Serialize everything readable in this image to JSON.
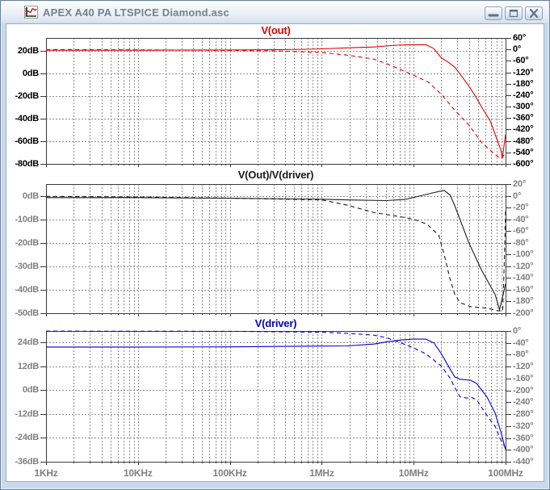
{
  "window": {
    "title": "APEX A40 PA LTSPICE Diamond.asc",
    "app_icon": "waveform-icon",
    "buttons": [
      {
        "name": "minimize",
        "icon": "minimize-icon"
      },
      {
        "name": "restore",
        "icon": "restore-icon"
      },
      {
        "name": "close",
        "icon": "close-icon"
      }
    ]
  },
  "colors": {
    "trace_red": "#e00000",
    "trace_black": "#1a1a1a",
    "trace_blue": "#0000cc",
    "grid": "#8f8f8f",
    "plot_border": "#3a3a3a",
    "axis_text_active": "#000000",
    "axis_text_inactive": "#808080",
    "frame_blue": "#c7daee"
  },
  "x_axis": {
    "scale": "log",
    "unit": "Hz",
    "min_hz": 1000,
    "max_hz": 100000000,
    "tick_labels": [
      "1KHz",
      "10KHz",
      "100KHz",
      "1MHz",
      "10MHz",
      "100MHz"
    ],
    "minor_tick_multipliers": [
      2,
      3,
      4,
      5,
      6,
      7,
      8,
      9
    ],
    "text_color": "#808080"
  },
  "chart_data": [
    {
      "type": "line",
      "title": "V(out)",
      "title_color": "#e00000",
      "axis_text_color": "#000000",
      "y_left": {
        "unit": "dB",
        "tick_labels": [
          "20dB",
          "0dB",
          "-20dB",
          "-40dB",
          "-60dB",
          "-80dB"
        ],
        "tick_values": [
          20,
          0,
          -20,
          -40,
          -60,
          -80
        ],
        "top_value": 31.2,
        "bottom_value": -80
      },
      "y_right": {
        "unit": "deg",
        "tick_labels": [
          "60°",
          "0°",
          "-60°",
          "-120°",
          "-180°",
          "-240°",
          "-300°",
          "-360°",
          "-420°",
          "-480°",
          "-540°",
          "-600°"
        ],
        "tick_values": [
          60,
          0,
          -60,
          -120,
          -180,
          -240,
          -300,
          -360,
          -420,
          -480,
          -540,
          -600
        ],
        "top_value": 60,
        "bottom_value": -600
      },
      "series": [
        {
          "name": "V(out) magnitude",
          "axis": "left",
          "line": "solid",
          "color": "#e00000",
          "points": [
            [
              1000,
              20.4
            ],
            [
              10000,
              20.4
            ],
            [
              100000,
              20.6
            ],
            [
              300000,
              20.8
            ],
            [
              700000,
              21.2
            ],
            [
              1000000,
              21.6
            ],
            [
              2000000,
              22.5
            ],
            [
              3700000,
              23.2
            ],
            [
              6400000,
              24.8
            ],
            [
              10000000,
              25.2
            ],
            [
              13500000,
              25.2
            ],
            [
              16500000,
              22.0
            ],
            [
              20000000,
              13.6
            ],
            [
              24000000,
              9.5
            ],
            [
              28000000,
              5.3
            ],
            [
              32000000,
              -0.7
            ],
            [
              40000000,
              -11.4
            ],
            [
              48500000,
              -22.0
            ],
            [
              55000000,
              -30.0
            ],
            [
              68000000,
              -42.0
            ],
            [
              77000000,
              -54.0
            ],
            [
              89000000,
              -68.0
            ],
            [
              92000000,
              -75.0
            ],
            [
              100000000,
              -54.0
            ]
          ]
        },
        {
          "name": "V(out) phase",
          "axis": "right",
          "line": "dashed",
          "color": "#e00000",
          "points": [
            [
              1000,
              -1
            ],
            [
              10000,
              -2
            ],
            [
              100000,
              -5
            ],
            [
              375000,
              -9
            ],
            [
              1000000,
              -16
            ],
            [
              1900000,
              -30
            ],
            [
              3700000,
              -51
            ],
            [
              5200000,
              -77
            ],
            [
              7400000,
              -108
            ],
            [
              10000000,
              -136
            ],
            [
              14400000,
              -171
            ],
            [
              20000000,
              -235
            ],
            [
              28000000,
              -319
            ],
            [
              40000000,
              -397
            ],
            [
              55000000,
              -489
            ],
            [
              77000000,
              -552
            ],
            [
              89000000,
              -573
            ],
            [
              100000000,
              -545
            ]
          ]
        }
      ]
    },
    {
      "type": "line",
      "title": "V(Out)/V(driver)",
      "title_color": "#1a1a1a",
      "axis_text_color": "#808080",
      "y_left": {
        "unit": "dB",
        "tick_labels": [
          "0dB",
          "-10dB",
          "-20dB",
          "-30dB",
          "-40dB",
          "-50dB"
        ],
        "tick_values": [
          0,
          -10,
          -20,
          -30,
          -40,
          -50
        ],
        "top_value": 5.3,
        "bottom_value": -50
      },
      "y_right": {
        "unit": "deg",
        "tick_labels": [
          "20°",
          "0°",
          "-20°",
          "-40°",
          "-60°",
          "-80°",
          "-100°",
          "-120°",
          "-140°",
          "-160°",
          "-180°",
          "-200°"
        ],
        "tick_values": [
          20,
          0,
          -20,
          -40,
          -60,
          -80,
          -100,
          -120,
          -140,
          -160,
          -180,
          -200
        ],
        "top_value": 20,
        "bottom_value": -200
      },
      "series": [
        {
          "name": "V(Out)/V(driver) magnitude",
          "axis": "left",
          "line": "solid",
          "color": "#1a1a1a",
          "points": [
            [
              1000,
              -0.5
            ],
            [
              10000,
              -0.5
            ],
            [
              100000,
              -0.8
            ],
            [
              1000000,
              -1.2
            ],
            [
              2000000,
              -1.5
            ],
            [
              5000000,
              -1.8
            ],
            [
              8000000,
              -1.3
            ],
            [
              12000000,
              0.3
            ],
            [
              16000000,
              1.5
            ],
            [
              21500000,
              2.6
            ],
            [
              25000000,
              0.5
            ],
            [
              28000000,
              -4.0
            ],
            [
              40000000,
              -20.0
            ],
            [
              55000000,
              -31.7
            ],
            [
              77000000,
              -42.0
            ],
            [
              86000000,
              -48.5
            ],
            [
              100000000,
              -37.5
            ]
          ]
        },
        {
          "name": "V(Out)/V(driver) phase",
          "axis": "right",
          "line": "dashed",
          "color": "#1a1a1a",
          "points": [
            [
              1000,
              -1
            ],
            [
              10000,
              -2
            ],
            [
              100000,
              -4
            ],
            [
              1000000,
              -7
            ],
            [
              1900000,
              -16
            ],
            [
              3700000,
              -28.5
            ],
            [
              7000000,
              -35.4
            ],
            [
              10000000,
              -40
            ],
            [
              14000000,
              -48.3
            ],
            [
              18800000,
              -67.5
            ],
            [
              21500000,
              -100
            ],
            [
              24800000,
              -141
            ],
            [
              28000000,
              -168
            ],
            [
              32000000,
              -182
            ],
            [
              42000000,
              -189
            ],
            [
              63000000,
              -191.5
            ],
            [
              84000000,
              -196
            ],
            [
              93000000,
              -196
            ],
            [
              97000000,
              -110
            ],
            [
              100000000,
              -22
            ]
          ]
        }
      ]
    },
    {
      "type": "line",
      "title": "V(driver)",
      "title_color": "#0000cc",
      "axis_text_color": "#808080",
      "y_left": {
        "unit": "dB",
        "tick_labels": [
          "24dB",
          "12dB",
          "0dB",
          "-12dB",
          "-24dB",
          "-36dB"
        ],
        "tick_values": [
          24,
          12,
          0,
          -12,
          -24,
          -36
        ],
        "top_value": 29.8,
        "bottom_value": -36
      },
      "y_right": {
        "unit": "deg",
        "tick_labels": [
          "0°",
          "-40°",
          "-80°",
          "-120°",
          "-160°",
          "-200°",
          "-240°",
          "-280°",
          "-320°",
          "-360°",
          "-400°",
          "-440°"
        ],
        "tick_values": [
          0,
          -40,
          -80,
          -120,
          -160,
          -200,
          -240,
          -280,
          -320,
          -360,
          -400,
          -440
        ],
        "top_value": 0,
        "bottom_value": -440
      },
      "series": [
        {
          "name": "V(driver) magnitude",
          "axis": "left",
          "line": "solid",
          "color": "#0000cc",
          "points": [
            [
              1000,
              21.7
            ],
            [
              10000,
              21.7
            ],
            [
              100000,
              21.8
            ],
            [
              1000000,
              22.2
            ],
            [
              1900000,
              22.3
            ],
            [
              3700000,
              23.2
            ],
            [
              5200000,
              24.4
            ],
            [
              7400000,
              25.3
            ],
            [
              10000000,
              25.7
            ],
            [
              13600000,
              25.7
            ],
            [
              16700000,
              23.7
            ],
            [
              20000000,
              18.3
            ],
            [
              24800000,
              10.8
            ],
            [
              28000000,
              6.7
            ],
            [
              32000000,
              5.5
            ],
            [
              42000000,
              5.0
            ],
            [
              48500000,
              3.4
            ],
            [
              63000000,
              -3.5
            ],
            [
              77000000,
              -11.6
            ],
            [
              89000000,
              -21.0
            ],
            [
              100000000,
              -30.0
            ]
          ]
        },
        {
          "name": "V(driver) phase",
          "axis": "right",
          "line": "dashed",
          "color": "#0000cc",
          "points": [
            [
              1000,
              -0.5
            ],
            [
              100000,
              -1
            ],
            [
              1000000,
              -4
            ],
            [
              1900000,
              -8
            ],
            [
              3700000,
              -14
            ],
            [
              5200000,
              -24
            ],
            [
              7400000,
              -41
            ],
            [
              10000000,
              -57
            ],
            [
              13600000,
              -77
            ],
            [
              20000000,
              -118
            ],
            [
              24800000,
              -158
            ],
            [
              28000000,
              -190
            ],
            [
              32000000,
              -222
            ],
            [
              38000000,
              -226
            ],
            [
              42000000,
              -223
            ],
            [
              48500000,
              -231
            ],
            [
              55000000,
              -258
            ],
            [
              68000000,
              -299
            ],
            [
              77000000,
              -321
            ],
            [
              89000000,
              -367
            ],
            [
              100000000,
              -394
            ]
          ]
        }
      ]
    }
  ]
}
